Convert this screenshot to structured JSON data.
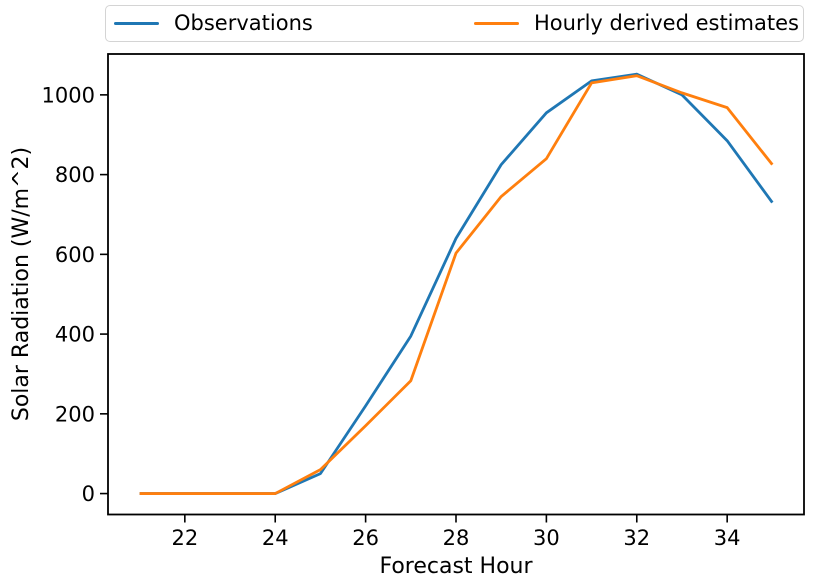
{
  "chart_data": {
    "type": "line",
    "title": "",
    "xlabel": "Forecast Hour",
    "ylabel": "Solar Radiation (W/m^2)",
    "x": [
      21,
      22,
      23,
      24,
      25,
      26,
      27,
      28,
      29,
      30,
      31,
      32,
      33,
      34,
      35
    ],
    "series": [
      {
        "name": "Observations",
        "color": "#1f77b4",
        "values": [
          0,
          0,
          0,
          0,
          50,
          220,
          395,
          640,
          825,
          955,
          1035,
          1052,
          1000,
          885,
          730
        ]
      },
      {
        "name": "Hourly derived estimates",
        "color": "#ff7f0e",
        "values": [
          0,
          0,
          0,
          0,
          60,
          170,
          283,
          603,
          745,
          840,
          1030,
          1048,
          1005,
          968,
          825
        ]
      }
    ],
    "xticks": [
      22,
      24,
      26,
      28,
      30,
      32,
      34
    ],
    "yticks": [
      0,
      200,
      400,
      600,
      800,
      1000
    ],
    "xlim": [
      20.3,
      35.7
    ],
    "ylim": [
      -52.5,
      1102.5
    ],
    "grid": false,
    "legend": {
      "position": "top",
      "border_color": "#d4d4d4"
    },
    "axis_color": "#000000",
    "background_color": "#ffffff"
  }
}
